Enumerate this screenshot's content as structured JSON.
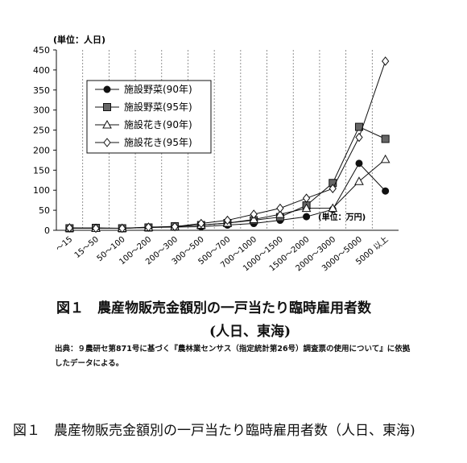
{
  "chart_data": {
    "type": "line",
    "unit_label": "(単位：人日)",
    "x_unit_label": "(単位：万円)",
    "ylim": [
      0,
      450
    ],
    "y_ticks": [
      0,
      50,
      100,
      150,
      200,
      250,
      300,
      350,
      400,
      450
    ],
    "grid": "vertical dashed lines",
    "legend_position": "top-left",
    "categories": [
      "～15",
      "15～50",
      "50～100",
      "100～200",
      "200～300",
      "300～500",
      "500～700",
      "700～1000",
      "1000～1500",
      "1500～2000",
      "2000～3000",
      "3000～5000",
      "5000 以上"
    ],
    "series": [
      {
        "name": "施設野菜(90年)",
        "marker": "filled-circle",
        "values": [
          5,
          5,
          5,
          7,
          8,
          9,
          13,
          17,
          25,
          34,
          52,
          167,
          98
        ]
      },
      {
        "name": "施設野菜(95年)",
        "marker": "filled-square",
        "values": [
          5,
          6,
          5,
          7,
          10,
          13,
          18,
          25,
          33,
          62,
          118,
          258,
          228
        ]
      },
      {
        "name": "施設花き(90年)",
        "marker": "open-triangle",
        "values": [
          6,
          5,
          5,
          7,
          9,
          13,
          18,
          27,
          40,
          55,
          55,
          122,
          177
        ]
      },
      {
        "name": "施設花き(95年)",
        "marker": "open-diamond",
        "values": [
          6,
          5,
          5,
          8,
          9,
          17,
          25,
          40,
          55,
          80,
          104,
          232,
          422
        ]
      }
    ]
  },
  "caption_line1": "図１　農産物販売金額別の一戸当たり臨時雇用者数",
  "caption_line2": "(人日、東海)",
  "source_text": "出典：９農研セ第871号に基づく『農林業センサス（指定統計第26号）調査票の使用について』に依拠したデータによる。",
  "bottom_caption": "図１　農産物販売金額別の一戸当たり臨時雇用者数（人日、東海)"
}
